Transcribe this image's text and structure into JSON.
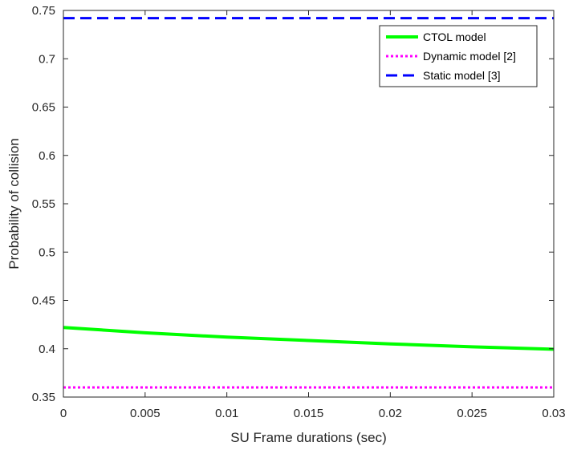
{
  "chart_data": {
    "type": "line",
    "title": "",
    "xlabel": "SU Frame durations (sec)",
    "ylabel": "Probability of collision",
    "xlim": [
      0,
      0.03
    ],
    "ylim": [
      0.35,
      0.75
    ],
    "xticks": [
      0,
      0.005,
      0.01,
      0.015,
      0.02,
      0.025,
      0.03
    ],
    "xtick_labels": [
      "0",
      "0.005",
      "0.01",
      "0.015",
      "0.02",
      "0.025",
      "0.03"
    ],
    "yticks": [
      0.35,
      0.4,
      0.45,
      0.5,
      0.55,
      0.6,
      0.65,
      0.7,
      0.75
    ],
    "ytick_labels": [
      "0.35",
      "0.4",
      "0.45",
      "0.5",
      "0.55",
      "0.6",
      "0.65",
      "0.7",
      "0.75"
    ],
    "grid": false,
    "legend_position": "top-right",
    "series": [
      {
        "name": "CTOL model",
        "color": "#00ff00",
        "style": "solid",
        "x": [
          0,
          0.005,
          0.01,
          0.015,
          0.02,
          0.025,
          0.03
        ],
        "values": [
          0.422,
          0.4165,
          0.412,
          0.4085,
          0.405,
          0.402,
          0.3995
        ]
      },
      {
        "name": "Dynamic model [2]",
        "color": "#ff00ff",
        "style": "dotted",
        "x": [
          0,
          0.03
        ],
        "values": [
          0.36,
          0.36
        ]
      },
      {
        "name": "Static model [3]",
        "color": "#0000ff",
        "style": "dashed",
        "x": [
          0,
          0.03
        ],
        "values": [
          0.742,
          0.742
        ]
      }
    ]
  }
}
